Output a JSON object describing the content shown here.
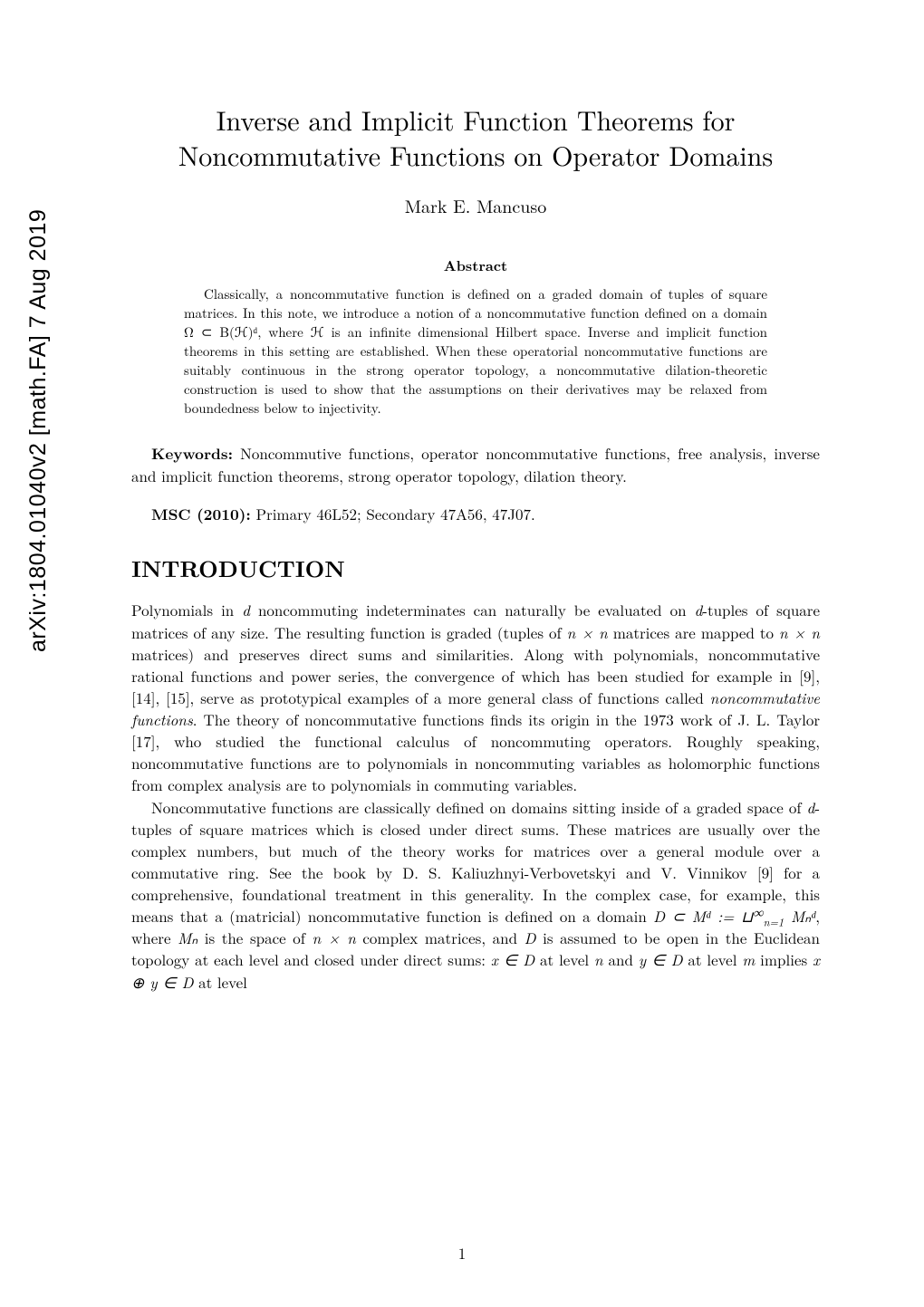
{
  "arxiv": {
    "id": "arXiv:1804.01040v2  [math.FA]  7 Aug 2019"
  },
  "paper": {
    "title_line1": "Inverse and Implicit Function Theorems for",
    "title_line2": "Noncommutative Functions on Operator Domains",
    "author": "Mark E. Mancuso",
    "abstract_heading": "Abstract",
    "abstract": "Classically, a noncommutative function is defined on a graded domain of tuples of square matrices. In this note, we introduce a notion of a noncommutative function defined on a domain Ω ⊂ B(ℋ)ᵈ, where ℋ is an infinite dimensional Hilbert space. Inverse and implicit function theorems in this setting are established. When these operatorial noncommutative functions are suitably continuous in the strong operator topology, a noncommutative dilation-theoretic construction is used to show that the assumptions on their derivatives may be relaxed from boundedness below to injectivity.",
    "keywords_label": "Keywords:",
    "keywords_text": " Noncommutive functions, operator noncommutative functions, free analysis, inverse and implicit function theorems, strong operator topology, dilation theory.",
    "msc_label": "MSC (2010):",
    "msc_text": " Primary 46L52; Secondary 47A56, 47J07.",
    "section_heading": "INTRODUCTION",
    "para1_a": "Polynomials in ",
    "para1_b": " noncommuting indeterminates can naturally be evaluated on ",
    "para1_c": "-tuples of square matrices of any size. The resulting function is graded (tuples of ",
    "para1_d": " matrices are mapped to ",
    "para1_e": " matrices) and preserves direct sums and similarities. Along with polynomials, noncommutative rational functions and power series, the convergence of which has been studied for example in [9], [14], [15], serve as prototypical examples of a more general class of functions called ",
    "para1_italic": "noncommutative functions",
    "para1_f": ". The theory of noncommutative functions finds its origin in the 1973 work of J. L. Taylor [17], who studied the functional calculus of noncommuting operators. Roughly speaking, noncommutative functions are to polynomials in noncommuting variables as holomorphic functions from complex analysis are to polynomials in commuting variables.",
    "para2_a": "Noncommutative functions are classically defined on domains sitting inside of a graded space of ",
    "para2_b": "-tuples of square matrices which is closed under direct sums. These matrices are usually over the complex numbers, but much of the theory works for matrices over a general module over a commutative ring. See the book by D. S. Kaliuzhnyi-Verbovetskyi and V. Vinnikov [9] for a comprehensive, foundational treatment in this generality. In the complex case, for example, this means that a (matricial) noncommutative function is defined on a domain ",
    "para2_c": ", where ",
    "para2_d": " is the space of ",
    "para2_e": " complex matrices, and ",
    "para2_f": " is assumed to be open in the Euclidean topology at each level and closed under direct sums: ",
    "para2_g": " at level ",
    "para2_h": " and ",
    "para2_i": " at level ",
    "para2_j": " implies ",
    "para2_k": " at level",
    "math": {
      "d": "d",
      "n_times_n": "n × n",
      "D": "D",
      "Mn": "Mₙ",
      "D_subset": "D ⊂ Mᵈ := ⊔",
      "union_sub": "n=1",
      "union_sup": "∞",
      "Mnd": " Mₙᵈ",
      "x_in_D": "x ∈ D",
      "n": "n",
      "y_in_D": "y ∈ D",
      "m": "m",
      "x_oplus_y": "x ⊕ y ∈ D"
    },
    "page_number": "1"
  },
  "style": {
    "title_fontsize": 30,
    "author_fontsize": 20,
    "abstract_heading_fontsize": 16,
    "abstract_fontsize": 15,
    "body_fontsize": 17,
    "section_fontsize": 25,
    "text_color": "#000000",
    "background_color": "#ffffff"
  }
}
